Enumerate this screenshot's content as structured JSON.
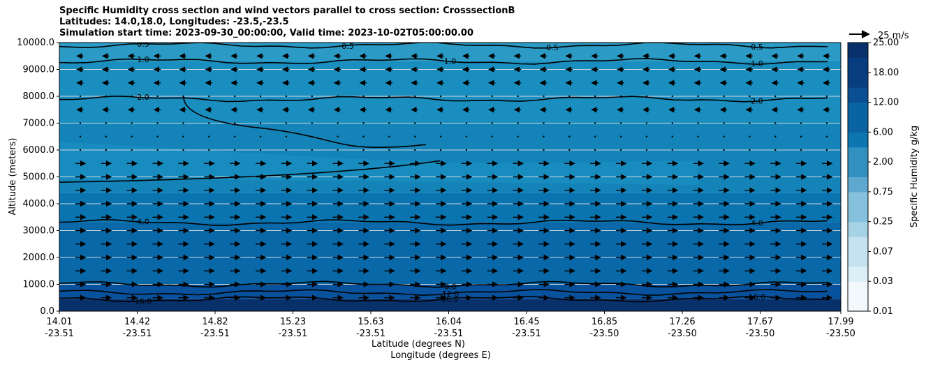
{
  "chart_data": {
    "type": "contour",
    "title_lines": [
      "Specific Humidity cross section and wind vectors parallel to cross section: CrosssectionB",
      "Latitudes: 14.0,18.0, Longitudes: -23.5,-23.5",
      "Simulation start time: 2023-09-30_00:00:00, Valid time: 2023-10-02T05:00:00.00"
    ],
    "ylabel": "Altitude (meters)",
    "xlabel_lines": [
      "Latitude (degrees N)",
      "Longitude (degrees E)"
    ],
    "ylim": [
      0,
      10000
    ],
    "y_ticks": [
      "0.0",
      "1000.0",
      "2000.0",
      "3000.0",
      "4000.0",
      "5000.0",
      "6000.0",
      "7000.0",
      "8000.0",
      "9000.0",
      "10000.0"
    ],
    "x_ticks": [
      {
        "lat": "14.01",
        "lon": "-23.51"
      },
      {
        "lat": "14.42",
        "lon": "-23.51"
      },
      {
        "lat": "14.82",
        "lon": "-23.51"
      },
      {
        "lat": "15.23",
        "lon": "-23.51"
      },
      {
        "lat": "15.63",
        "lon": "-23.51"
      },
      {
        "lat": "16.04",
        "lon": "-23.51"
      },
      {
        "lat": "16.45",
        "lon": "-23.51"
      },
      {
        "lat": "16.85",
        "lon": "-23.50"
      },
      {
        "lat": "17.26",
        "lon": "-23.50"
      },
      {
        "lat": "17.67",
        "lon": "-23.50"
      },
      {
        "lat": "17.99",
        "lon": "-23.50"
      }
    ],
    "grid": "horizontal",
    "colorbar": {
      "label": "Specific Humidity g/kg",
      "ticks": [
        "0.01",
        "0.03",
        "0.07",
        "0.25",
        "0.75",
        "2.00",
        "6.00",
        "12.00",
        "18.00",
        "25.00"
      ]
    },
    "quiver_key": "25 m/s",
    "contour_lines": [
      {
        "level": "0.5",
        "labels": [
          "0.5",
          "0.5",
          "0.5",
          "0.5"
        ],
        "altitude_m": 9900
      },
      {
        "level": "1.0",
        "labels": [
          "1.0",
          "1.0",
          "1.0"
        ],
        "altitude_m": 9300
      },
      {
        "level": "2.0",
        "labels": [
          "2.0",
          "2.0"
        ],
        "altitude_m": 7900
      },
      {
        "level": "4.0",
        "labels": [
          "4.0",
          "4.0"
        ],
        "altitude_m": 3300
      },
      {
        "level": "8.0",
        "labels": [
          "8.0"
        ],
        "altitude_m": 1000
      },
      {
        "level": "12.0",
        "labels": [
          "12.0"
        ],
        "altitude_m": 700
      },
      {
        "level": "16.0",
        "labels": [
          "16.0",
          "16.0",
          "16.0"
        ],
        "altitude_m": 450
      }
    ],
    "wind": {
      "rows_altitude_m": [
        500,
        1000,
        1500,
        2000,
        2500,
        3000,
        3500,
        4000,
        4500,
        5000,
        5500,
        6000,
        6500,
        7000,
        7500,
        8000,
        8500,
        9000,
        9500
      ],
      "rows_direction": [
        "east",
        "east",
        "east",
        "east",
        "east",
        "east",
        "east",
        "east",
        "east",
        "east",
        "east",
        "calm",
        "calm",
        "calm",
        "west",
        "calm",
        "west",
        "west",
        "west"
      ]
    },
    "colors": {
      "band_surface": "#08306b",
      "band_low": "#08519c",
      "band_mid": "#0868a8",
      "band_mid2": "#0a74b0",
      "band_moist": "#1483b8",
      "band_upper": "#1a8ebf",
      "band_top": "#2b9bc6"
    }
  }
}
